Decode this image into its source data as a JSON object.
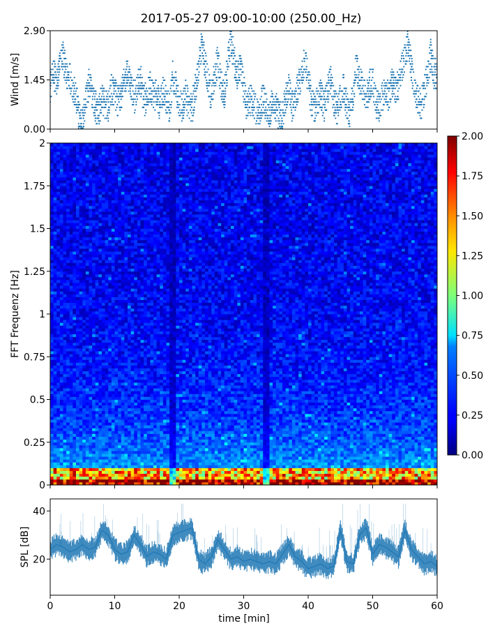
{
  "chart_data": {
    "title": "2017-05-27 09:00-10:00 (250.00_Hz)",
    "panels": [
      {
        "id": "wind",
        "type": "scatter",
        "ylabel": "Wind [m/s]",
        "ylim": [
          0,
          2.9
        ],
        "yticks": [
          0.0,
          1.45,
          2.9
        ],
        "ytick_labels": [
          "0.00",
          "1.45",
          "2.90"
        ],
        "xlim": [
          0,
          60
        ],
        "color": "#1f77b4",
        "series": [
          {
            "x": [
              0.0,
              0.5,
              1.0,
              1.5,
              2.0,
              2.5,
              3.0,
              3.5,
              4.0,
              4.5,
              5.0,
              5.5,
              6.0,
              6.5,
              7.0,
              7.5,
              8.0,
              8.5,
              9.0,
              9.5,
              10.0,
              10.5,
              11.0,
              11.5,
              12.0,
              12.5,
              13.0,
              13.5,
              14.0,
              14.5,
              15.0,
              15.5,
              16.0,
              16.5,
              17.0,
              17.5,
              18.0,
              18.5,
              19.0,
              19.5,
              20.0,
              20.5,
              21.0,
              21.5,
              22.0,
              22.5,
              23.0,
              23.5,
              24.0,
              24.5,
              25.0,
              25.5,
              26.0,
              26.5,
              27.0,
              27.5,
              28.0,
              28.5,
              29.0,
              29.5,
              30.0,
              30.5,
              31.0,
              31.5,
              32.0,
              32.5,
              33.0,
              33.5,
              34.0,
              34.5,
              35.0,
              35.5,
              36.0,
              36.5,
              37.0,
              37.5,
              38.0,
              38.5,
              39.0,
              39.5,
              40.0,
              40.5,
              41.0,
              41.5,
              42.0,
              42.5,
              43.0,
              43.5,
              44.0,
              44.5,
              45.0,
              45.5,
              46.0,
              46.5,
              47.0,
              47.5,
              48.0,
              48.5,
              49.0,
              49.5,
              50.0,
              50.5,
              51.0,
              51.5,
              52.0,
              52.5,
              53.0,
              53.5,
              54.0,
              54.5,
              55.0,
              55.5,
              56.0,
              56.5,
              57.0,
              57.5,
              58.0,
              58.5,
              59.0,
              59.5
            ],
            "y": [
              1.2,
              1.7,
              1.3,
              1.9,
              2.2,
              1.5,
              1.6,
              1.2,
              0.9,
              0.4,
              0.2,
              0.9,
              1.3,
              1.1,
              0.7,
              0.5,
              0.9,
              0.7,
              0.6,
              1.2,
              1.1,
              0.8,
              1.0,
              1.4,
              1.7,
              1.3,
              0.9,
              1.2,
              1.5,
              0.8,
              1.0,
              1.3,
              0.9,
              1.1,
              0.7,
              1.2,
              0.9,
              0.6,
              1.6,
              1.2,
              0.8,
              0.6,
              1.0,
              0.7,
              0.6,
              1.2,
              1.8,
              2.6,
              1.9,
              1.4,
              0.9,
              1.6,
              2.0,
              1.3,
              1.0,
              1.8,
              2.7,
              2.0,
              1.6,
              1.8,
              1.2,
              0.6,
              0.9,
              0.8,
              0.5,
              0.6,
              0.9,
              0.7,
              0.4,
              0.8,
              0.6,
              0.4,
              0.3,
              0.9,
              1.2,
              0.7,
              0.9,
              1.3,
              1.6,
              2.0,
              1.5,
              0.8,
              0.6,
              0.9,
              1.0,
              0.7,
              1.2,
              1.5,
              0.8,
              0.6,
              0.9,
              1.2,
              0.7,
              0.5,
              1.1,
              1.9,
              1.4,
              1.2,
              0.9,
              1.3,
              1.5,
              0.8,
              0.6,
              0.9,
              1.1,
              1.0,
              1.4,
              1.2,
              1.3,
              1.8,
              2.1,
              2.6,
              1.8,
              1.2,
              0.9,
              0.7,
              1.1,
              1.6,
              2.2,
              1.6
            ]
          }
        ]
      },
      {
        "id": "spectrogram",
        "type": "heatmap",
        "ylabel": "FFT Frequenz [Hz]",
        "ylim": [
          0,
          2
        ],
        "yticks": [
          0,
          0.25,
          0.5,
          0.75,
          1,
          1.25,
          1.5,
          1.75,
          2
        ],
        "ytick_labels": [
          "0",
          "0.25",
          "0.5",
          "0.75",
          "1",
          "1.25",
          "1.5",
          "1.75",
          "2"
        ],
        "xlim": [
          0,
          60
        ],
        "colormap": "jet",
        "colorbar": {
          "range": [
            0,
            2
          ],
          "ticks": [
            0.0,
            0.25,
            0.5,
            0.75,
            1.0,
            1.25,
            1.5,
            1.75,
            2.0
          ],
          "tick_labels": [
            "0.00",
            "0.25",
            "0.50",
            "0.75",
            "1.00",
            "1.25",
            "1.50",
            "1.75",
            "2.00"
          ]
        },
        "notes": {
          "low_freq_band_hz": [
            0,
            0.1
          ],
          "dark_stripes_min": [
            19.0,
            33.5
          ]
        }
      },
      {
        "id": "spl",
        "type": "line",
        "ylabel": "SPL [dB]",
        "xlabel": "time [min]",
        "ylim": [
          5,
          45
        ],
        "yticks": [
          20,
          40
        ],
        "ytick_labels": [
          "20",
          "40"
        ],
        "xlim": [
          0,
          60
        ],
        "xticks": [
          0,
          10,
          20,
          30,
          40,
          50,
          60
        ],
        "xtick_labels": [
          "0",
          "10",
          "20",
          "30",
          "40",
          "50",
          "60"
        ],
        "color": "#1f77b4",
        "series": [
          {
            "x": [
              0,
              1,
              2,
              3,
              4,
              5,
              6,
              7,
              8,
              9,
              10,
              11,
              12,
              13,
              14,
              15,
              16,
              17,
              18,
              19,
              20,
              21,
              22,
              23,
              24,
              25,
              26,
              27,
              28,
              29,
              30,
              31,
              32,
              33,
              34,
              35,
              36,
              37,
              38,
              39,
              40,
              41,
              42,
              43,
              44,
              45,
              46,
              47,
              48,
              49,
              50,
              51,
              52,
              53,
              54,
              55,
              56,
              57,
              58,
              59,
              60
            ],
            "y": [
              24,
              26,
              25,
              23,
              24,
              26,
              24,
              25,
              32,
              30,
              24,
              22,
              23,
              30,
              26,
              21,
              23,
              22,
              20,
              30,
              31,
              32,
              33,
              20,
              18,
              21,
              28,
              24,
              20,
              21,
              19,
              20,
              19,
              18,
              19,
              18,
              22,
              26,
              21,
              19,
              16,
              17,
              18,
              16,
              17,
              32,
              19,
              18,
              30,
              33,
              22,
              26,
              25,
              23,
              21,
              32,
              24,
              21,
              18,
              19,
              17
            ]
          }
        ]
      }
    ]
  }
}
